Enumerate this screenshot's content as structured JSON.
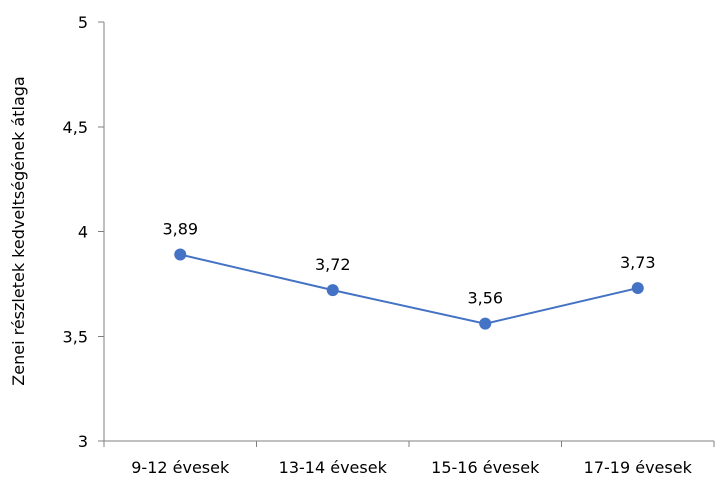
{
  "chart_data": {
    "type": "line",
    "title": "",
    "xlabel": "",
    "ylabel": "Zenei részletek kedveltségének átlaga",
    "categories": [
      "9-12 évesek",
      "13-14 évesek",
      "15-16 évesek",
      "17-19 évesek"
    ],
    "series": [
      {
        "values": [
          3.89,
          3.72,
          3.56,
          3.73
        ],
        "data_labels": [
          "3,89",
          "3,72",
          "3,56",
          "3,73"
        ],
        "color": "#4472C4"
      }
    ],
    "ylim": [
      3,
      5
    ],
    "yticks": [
      3,
      3.5,
      4,
      4.5,
      5
    ],
    "ytick_labels": [
      "3",
      "3,5",
      "4",
      "4,5",
      "5"
    ],
    "grid": false,
    "legend": "none"
  }
}
